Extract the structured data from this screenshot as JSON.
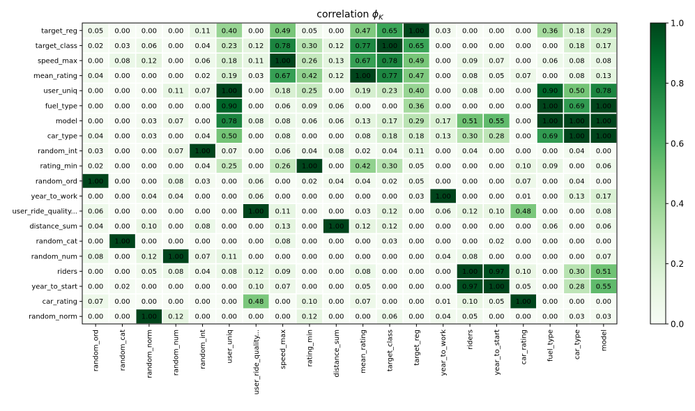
{
  "chart_data": {
    "type": "heatmap",
    "title_main": "correlation ",
    "title_symbol": "ϕ",
    "title_sub": "K",
    "x_labels": [
      "random_ord",
      "random_cat",
      "random_norm",
      "random_num",
      "random_int",
      "user_uniq",
      "user_ride_quality...",
      "speed_max",
      "rating_min",
      "distance_sum",
      "mean_rating",
      "target_class",
      "target_reg",
      "year_to_work",
      "riders",
      "year_to_start",
      "car_rating",
      "fuel_type",
      "car_type",
      "model"
    ],
    "y_labels": [
      "target_reg",
      "target_class",
      "speed_max",
      "mean_rating",
      "user_uniq",
      "fuel_type",
      "model",
      "car_type",
      "random_int",
      "rating_min",
      "random_ord",
      "year_to_work",
      "user_ride_quality...",
      "distance_sum",
      "random_cat",
      "random_num",
      "riders",
      "year_to_start",
      "car_rating",
      "random_norm"
    ],
    "values": [
      [
        0.05,
        0.0,
        0.0,
        0.0,
        0.11,
        0.4,
        0.0,
        0.49,
        0.05,
        0.0,
        0.47,
        0.65,
        1.0,
        0.03,
        0.0,
        0.0,
        0.0,
        0.36,
        0.18,
        0.29
      ],
      [
        0.02,
        0.03,
        0.06,
        0.0,
        0.04,
        0.23,
        0.12,
        0.78,
        0.3,
        0.12,
        0.77,
        1.0,
        0.65,
        0.0,
        0.0,
        0.0,
        0.0,
        0.0,
        0.18,
        0.17
      ],
      [
        0.0,
        0.08,
        0.12,
        0.0,
        0.06,
        0.18,
        0.11,
        1.0,
        0.26,
        0.13,
        0.67,
        0.78,
        0.49,
        0.0,
        0.09,
        0.07,
        0.0,
        0.06,
        0.08,
        0.08
      ],
      [
        0.04,
        0.0,
        0.0,
        0.0,
        0.02,
        0.19,
        0.03,
        0.67,
        0.42,
        0.12,
        1.0,
        0.77,
        0.47,
        0.0,
        0.08,
        0.05,
        0.07,
        0.0,
        0.08,
        0.13
      ],
      [
        0.0,
        0.0,
        0.0,
        0.11,
        0.07,
        1.0,
        0.0,
        0.18,
        0.25,
        0.0,
        0.19,
        0.23,
        0.4,
        0.0,
        0.08,
        0.0,
        0.0,
        0.9,
        0.5,
        0.78
      ],
      [
        0.0,
        0.0,
        0.0,
        0.0,
        0.0,
        0.9,
        0.0,
        0.06,
        0.09,
        0.06,
        0.0,
        0.0,
        0.36,
        0.0,
        0.0,
        0.0,
        0.0,
        1.0,
        0.69,
        1.0
      ],
      [
        0.0,
        0.0,
        0.03,
        0.07,
        0.0,
        0.78,
        0.08,
        0.08,
        0.06,
        0.06,
        0.13,
        0.17,
        0.29,
        0.17,
        0.51,
        0.55,
        0.0,
        1.0,
        1.0,
        1.0
      ],
      [
        0.04,
        0.0,
        0.03,
        0.0,
        0.04,
        0.5,
        0.0,
        0.08,
        0.0,
        0.0,
        0.08,
        0.18,
        0.18,
        0.13,
        0.3,
        0.28,
        0.0,
        0.69,
        1.0,
        1.0
      ],
      [
        0.03,
        0.0,
        0.0,
        0.07,
        1.0,
        0.07,
        0.0,
        0.06,
        0.04,
        0.08,
        0.02,
        0.04,
        0.11,
        0.0,
        0.04,
        0.0,
        0.0,
        0.0,
        0.04,
        0.0
      ],
      [
        0.02,
        0.0,
        0.0,
        0.0,
        0.04,
        0.25,
        0.0,
        0.26,
        1.0,
        0.0,
        0.42,
        0.3,
        0.05,
        0.0,
        0.0,
        0.0,
        0.1,
        0.09,
        0.0,
        0.06
      ],
      [
        1.0,
        0.0,
        0.0,
        0.08,
        0.03,
        0.0,
        0.06,
        0.0,
        0.02,
        0.04,
        0.04,
        0.02,
        0.05,
        0.0,
        0.0,
        0.0,
        0.07,
        0.0,
        0.04,
        0.0
      ],
      [
        0.0,
        0.0,
        0.04,
        0.04,
        0.0,
        0.0,
        0.06,
        0.0,
        0.0,
        0.0,
        0.0,
        0.0,
        0.03,
        1.0,
        0.0,
        0.0,
        0.01,
        0.0,
        0.13,
        0.17
      ],
      [
        0.06,
        0.0,
        0.0,
        0.0,
        0.0,
        0.0,
        1.0,
        0.11,
        0.0,
        0.0,
        0.03,
        0.12,
        0.0,
        0.06,
        0.12,
        0.1,
        0.48,
        0.0,
        0.0,
        0.08
      ],
      [
        0.04,
        0.0,
        0.1,
        0.0,
        0.08,
        0.0,
        0.0,
        0.13,
        0.0,
        1.0,
        0.12,
        0.12,
        0.0,
        0.0,
        0.0,
        0.0,
        0.0,
        0.06,
        0.0,
        0.06
      ],
      [
        0.0,
        1.0,
        0.0,
        0.0,
        0.0,
        0.0,
        0.0,
        0.08,
        0.0,
        0.0,
        0.0,
        0.03,
        0.0,
        0.0,
        0.0,
        0.02,
        0.0,
        0.0,
        0.0,
        0.0
      ],
      [
        0.08,
        0.0,
        0.12,
        1.0,
        0.07,
        0.11,
        0.0,
        0.0,
        0.0,
        0.0,
        0.0,
        0.0,
        0.0,
        0.04,
        0.08,
        0.0,
        0.0,
        0.0,
        0.0,
        0.07
      ],
      [
        0.0,
        0.0,
        0.05,
        0.08,
        0.04,
        0.08,
        0.12,
        0.09,
        0.0,
        0.0,
        0.08,
        0.0,
        0.0,
        0.0,
        1.0,
        0.97,
        0.1,
        0.0,
        0.3,
        0.51
      ],
      [
        0.0,
        0.02,
        0.0,
        0.0,
        0.0,
        0.0,
        0.1,
        0.07,
        0.0,
        0.0,
        0.05,
        0.0,
        0.0,
        0.0,
        0.97,
        1.0,
        0.05,
        0.0,
        0.28,
        0.55
      ],
      [
        0.07,
        0.0,
        0.0,
        0.0,
        0.0,
        0.0,
        0.48,
        0.0,
        0.1,
        0.0,
        0.07,
        0.0,
        0.0,
        0.01,
        0.1,
        0.05,
        1.0,
        0.0,
        0.0,
        0.0
      ],
      [
        0.0,
        0.0,
        1.0,
        0.12,
        0.0,
        0.0,
        0.0,
        0.0,
        0.12,
        0.0,
        0.0,
        0.06,
        0.0,
        0.04,
        0.05,
        0.0,
        0.0,
        0.0,
        0.03,
        0.03
      ]
    ],
    "vmin": 0.0,
    "vmax": 1.0,
    "colorbar_ticks": [
      "0.0",
      "0.2",
      "0.4",
      "0.6",
      "0.8",
      "1.0"
    ],
    "colormap": [
      "#f7fcf5",
      "#e5f5e0",
      "#c7e9c0",
      "#a1d99b",
      "#74c476",
      "#41ab5d",
      "#238b45",
      "#006d2c",
      "#00441b"
    ],
    "light_text_threshold": 0.6
  }
}
